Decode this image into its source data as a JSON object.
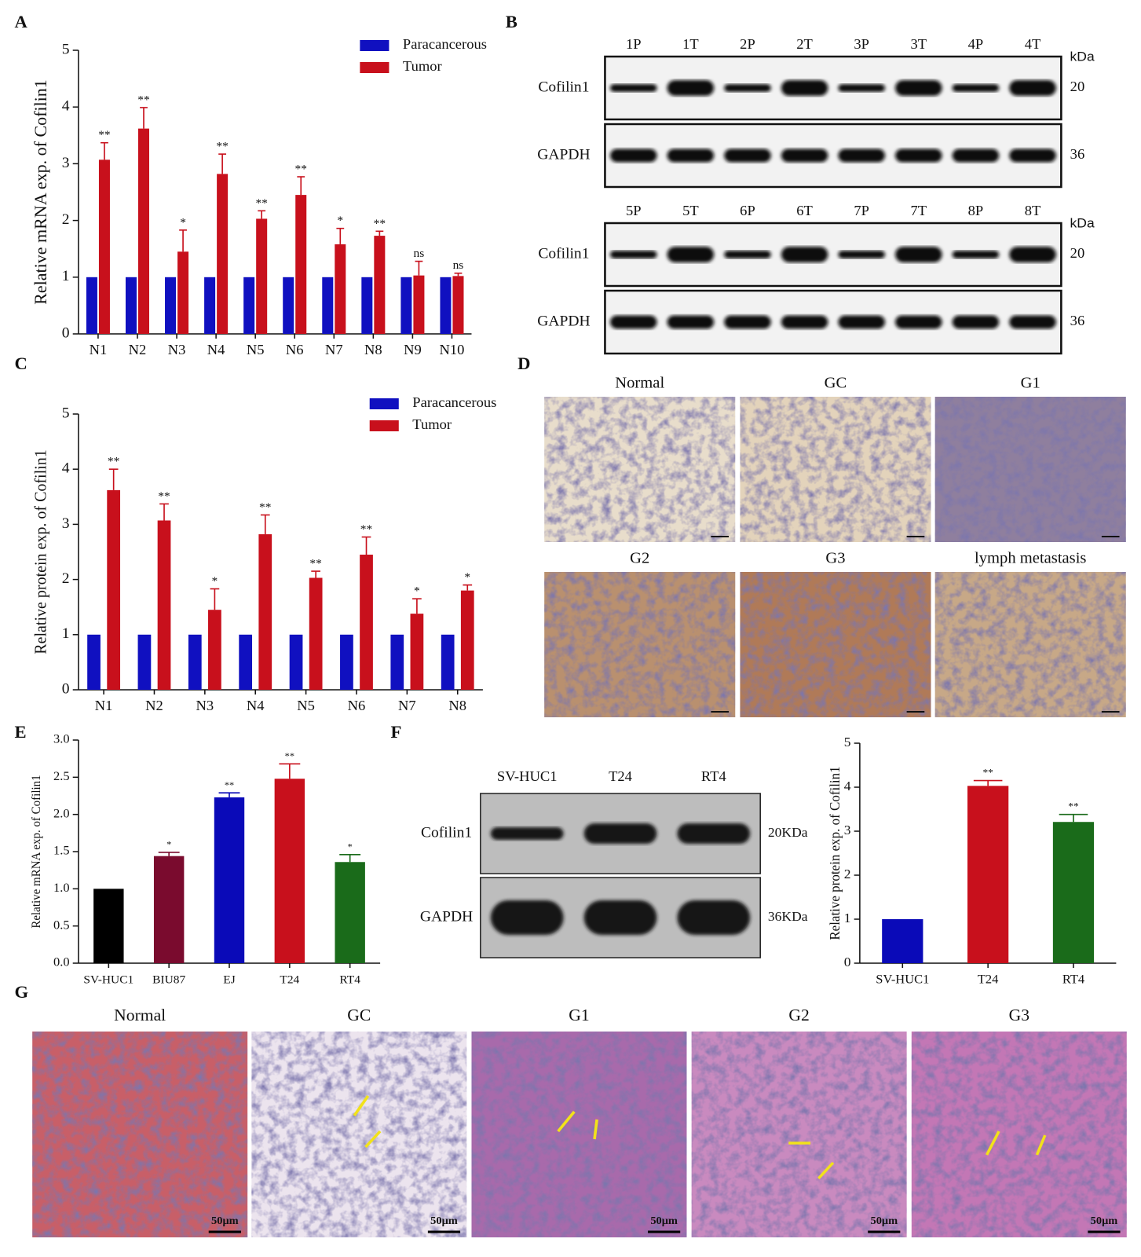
{
  "panels": [
    "A",
    "B",
    "C",
    "D",
    "E",
    "F",
    "G"
  ],
  "chart_data": [
    {
      "type": "bar",
      "y_label": "Relative mRNA exp. of Cofilin1",
      "categories": [
        "N1",
        "N2",
        "N3",
        "N4",
        "N5",
        "N6",
        "N7",
        "N8",
        "N9",
        "N10"
      ],
      "series": [
        {
          "name": "Paracancerous",
          "color": "#1010c0",
          "values": [
            1,
            1,
            1,
            1,
            1,
            1,
            1,
            1,
            1,
            1
          ]
        },
        {
          "name": "Tumor",
          "color": "#c8101c",
          "values": [
            3.07,
            3.62,
            1.45,
            2.82,
            2.03,
            2.45,
            1.58,
            1.73,
            1.03,
            1.02
          ],
          "errors": [
            0.3,
            0.37,
            0.38,
            0.35,
            0.14,
            0.32,
            0.28,
            0.08,
            0.25,
            0.05
          ]
        }
      ],
      "annotations": [
        "**",
        "**",
        "*",
        "**",
        "**",
        "**",
        "*",
        "**",
        "ns",
        "ns"
      ],
      "ylim": [
        0,
        5
      ],
      "yticks": [
        0,
        1,
        2,
        3,
        4,
        5
      ],
      "legend": "top-right"
    },
    {
      "type": "bar",
      "y_label": "Relative protein exp. of Cofilin1",
      "categories": [
        "N1",
        "N2",
        "N3",
        "N4",
        "N5",
        "N6",
        "N7",
        "N8"
      ],
      "series": [
        {
          "name": "Paracancerous",
          "color": "#1010c0",
          "values": [
            1,
            1,
            1,
            1,
            1,
            1,
            1,
            1
          ]
        },
        {
          "name": "Tumor",
          "color": "#c8101c",
          "values": [
            3.62,
            3.07,
            1.45,
            2.82,
            2.03,
            2.45,
            1.38,
            1.8
          ],
          "errors": [
            0.38,
            0.3,
            0.38,
            0.35,
            0.12,
            0.32,
            0.27,
            0.1
          ]
        }
      ],
      "annotations": [
        "**",
        "**",
        "*",
        "**",
        "**",
        "**",
        "*",
        "*"
      ],
      "ylim": [
        0,
        5
      ],
      "yticks": [
        0,
        1,
        2,
        3,
        4,
        5
      ],
      "legend": "top-right"
    },
    {
      "type": "bar",
      "y_label": "Relative mRNA exp. of Cofilin1",
      "categories": [
        "SV-HUC1",
        "BIU87",
        "EJ",
        "T24",
        "RT4"
      ],
      "values": [
        1.0,
        1.44,
        2.23,
        2.48,
        1.36
      ],
      "errors": [
        null,
        0.05,
        0.06,
        0.2,
        0.1
      ],
      "colors": [
        "#000000",
        "#7a0b2e",
        "#0a0ab8",
        "#c8101c",
        "#1a6b1a"
      ],
      "annotations": [
        null,
        "*",
        "**",
        "**",
        "*"
      ],
      "ylim": [
        0,
        3
      ],
      "yticks": [
        {
          "value": 0,
          "label": "0.0"
        },
        0.5,
        {
          "value": 1,
          "label": "1.0"
        },
        1.5,
        {
          "value": 2,
          "label": "2.0"
        },
        2.5,
        {
          "value": 3,
          "label": "3.0"
        }
      ]
    },
    {
      "type": "bar",
      "y_label": "Relative protein exp. of Cofilin1",
      "categories": [
        "SV-HUC1",
        "T24",
        "RT4"
      ],
      "values": [
        1,
        4.03,
        3.21
      ],
      "errors": [
        null,
        0.12,
        0.17
      ],
      "colors": [
        "#0a0ab8",
        "#c8101c",
        "#1a6b1a"
      ],
      "annotations": [
        null,
        "**",
        "**"
      ],
      "ylim": [
        0,
        5
      ],
      "yticks": [
        0,
        1,
        2,
        3,
        4,
        5
      ]
    }
  ],
  "blot_b": [
    {
      "lanes": [
        "1P",
        "1T",
        "2P",
        "2T",
        "3P",
        "3T",
        "4P",
        "4T"
      ],
      "unit": "kDa",
      "bands": [
        {
          "name": "Cofilin1",
          "size": 20
        },
        {
          "name": "GAPDH",
          "size": 36
        }
      ]
    },
    {
      "lanes": [
        "5P",
        "5T",
        "6P",
        "6T",
        "7P",
        "7T",
        "8P",
        "8T"
      ],
      "unit": "kDa",
      "bands": [
        {
          "name": "Cofilin1",
          "size": 20
        },
        {
          "name": "GAPDH",
          "size": 36
        }
      ]
    }
  ],
  "blot_f": {
    "lanes": [
      "SV-HUC1",
      "T24",
      "RT4"
    ],
    "bands": [
      {
        "name": "Cofilin1",
        "size": "20KDa"
      },
      {
        "name": "GAPDH",
        "size": "36KDa"
      }
    ]
  },
  "ihc_d": {
    "labels": [
      "Normal",
      "GC",
      "G1",
      "G2",
      "G3",
      "lymph metastasis"
    ]
  },
  "he_g": {
    "labels": [
      "Normal",
      "GC",
      "G1",
      "G2",
      "G3"
    ],
    "scale_bar": "50μm"
  }
}
